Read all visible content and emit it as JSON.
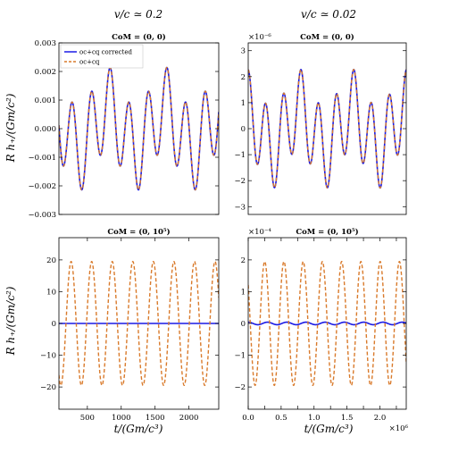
{
  "column_titles": [
    "v/c ≃ 0.2",
    "v/c ≃ 0.02"
  ],
  "ylabel": "R h₊/(Gm/c²)",
  "xlabel": "t/(Gm/c³)",
  "legend": {
    "placement": "top-left",
    "entries": [
      {
        "name": "oc+cq corrected",
        "color": "#1a1ae6",
        "style": "solid"
      },
      {
        "name": "oc+cq",
        "color": "#d97a2b",
        "style": "dashed"
      }
    ]
  },
  "colors": {
    "corrected": "#1a1ae6",
    "uncorrected": "#d97a2b"
  },
  "chart_data": [
    {
      "type": "line",
      "title": "CoM = (0, 0)",
      "panel": "top-left",
      "xlim": [
        80,
        2440
      ],
      "ylim": [
        -0.003,
        0.003
      ],
      "yticks": [
        -0.003,
        -0.002,
        -0.001,
        0,
        0.001,
        0.002,
        0.003
      ],
      "ytick_labels": [
        "−0.003",
        "−0.002",
        "−0.001",
        "0.000",
        "0.001",
        "0.002",
        "0.003"
      ],
      "xtick_labels": [],
      "y_exponent": "",
      "x_exponent": "",
      "legend": true,
      "series": [
        {
          "name": "oc+cq corrected",
          "color": "#1a1ae6",
          "dash": false,
          "wave": {
            "A": 0.00145,
            "B": 0.00072,
            "w1": 0.0225,
            "w2": 0.0075,
            "p1": 0.0,
            "p2": 0.3,
            "offset": 0
          }
        },
        {
          "name": "oc+cq",
          "color": "#d97a2b",
          "dash": true,
          "wave": {
            "A": 0.00145,
            "B": 0.00072,
            "w1": 0.0225,
            "w2": 0.0075,
            "p1": 0.0,
            "p2": 0.3,
            "offset": 0
          }
        }
      ]
    },
    {
      "type": "line",
      "title": "CoM = (0, 0)",
      "panel": "top-right",
      "xlim": [
        0,
        2400000
      ],
      "ylim": [
        -3.3,
        3.3
      ],
      "yticks": [
        -3,
        -2,
        -1,
        0,
        1,
        2,
        3
      ],
      "ytick_labels": [
        "−3",
        "−2",
        "−1",
        "0",
        "1",
        "2",
        "3"
      ],
      "xtick_labels": [],
      "y_exponent": "×10⁻⁶",
      "x_exponent": "",
      "legend": false,
      "series": [
        {
          "name": "oc+cq corrected",
          "color": "#1a1ae6",
          "dash": false,
          "wave": {
            "A": 1.53,
            "B": 0.77,
            "w1": 2.35e-05,
            "w2": 7.8e-06,
            "p1": 0.0,
            "p2": 0.3,
            "offset": 0
          }
        },
        {
          "name": "oc+cq",
          "color": "#d97a2b",
          "dash": true,
          "wave": {
            "A": 1.53,
            "B": 0.77,
            "w1": 2.35e-05,
            "w2": 7.8e-06,
            "p1": 0.0,
            "p2": 0.3,
            "offset": 0
          }
        }
      ]
    },
    {
      "type": "line",
      "title": "CoM = (0, 10⁵)",
      "panel": "bottom-left",
      "xlim": [
        80,
        2440
      ],
      "ylim": [
        -27,
        27
      ],
      "yticks": [
        -20,
        -10,
        0,
        10,
        20
      ],
      "ytick_labels": [
        "−20",
        "−10",
        "0",
        "10",
        "20"
      ],
      "xticks": [
        500,
        1000,
        1500,
        2000
      ],
      "xtick_labels": [
        "500",
        "1000",
        "1500",
        "2000"
      ],
      "y_exponent": "",
      "x_exponent": "",
      "legend": false,
      "series": [
        {
          "name": "oc+cq corrected",
          "color": "#1a1ae6",
          "dash": false,
          "wave": {
            "A": 0.0,
            "B": 0.0,
            "w1": 0.0225,
            "w2": 0.0075,
            "p1": 0.0,
            "p2": 0.0,
            "offset": 0
          }
        },
        {
          "name": "oc+cq",
          "color": "#d97a2b",
          "dash": true,
          "wave": {
            "A": 19.5,
            "B": 0.0,
            "w1": 0.0207,
            "w2": 0.0,
            "p1": 0.9,
            "p2": 0.0,
            "offset": 0
          }
        }
      ]
    },
    {
      "type": "line",
      "title": "CoM = (0, 10⁵)",
      "panel": "bottom-right",
      "xlim": [
        0,
        2400000
      ],
      "ylim": [
        -2.7,
        2.7
      ],
      "yticks": [
        -2,
        -1,
        0,
        1,
        2
      ],
      "ytick_labels": [
        "−2",
        "−1",
        "0",
        "1",
        "2"
      ],
      "xticks": [
        0,
        250000,
        500000,
        750000,
        1000000,
        1250000,
        1500000,
        1750000,
        2000000,
        2250000
      ],
      "xtick_labels": [
        "0.0",
        "0.25",
        "0.5",
        "0.75",
        "1.0",
        "1.25",
        "1.5",
        "1.75",
        "2.0",
        "2.25"
      ],
      "xtick_labels_shown": [
        "0.0",
        "",
        "0.5",
        "",
        "1.0",
        "",
        "1.5",
        "",
        "2.0",
        ""
      ],
      "y_exponent": "×10⁻⁴",
      "x_exponent": "×10⁶",
      "legend": false,
      "series": [
        {
          "name": "oc+cq corrected",
          "color": "#1a1ae6",
          "dash": false,
          "wave": {
            "A": 0.04,
            "B": 0.0,
            "w1": 2.15e-05,
            "w2": 0.0,
            "p1": 0.0,
            "p2": 0.0,
            "offset": 0
          }
        },
        {
          "name": "oc+cq",
          "color": "#d97a2b",
          "dash": true,
          "wave": {
            "A": 1.95,
            "B": 0.0,
            "w1": 2.15e-05,
            "w2": 0.0,
            "p1": 0.9,
            "p2": 0.0,
            "offset": 0
          }
        }
      ]
    }
  ]
}
